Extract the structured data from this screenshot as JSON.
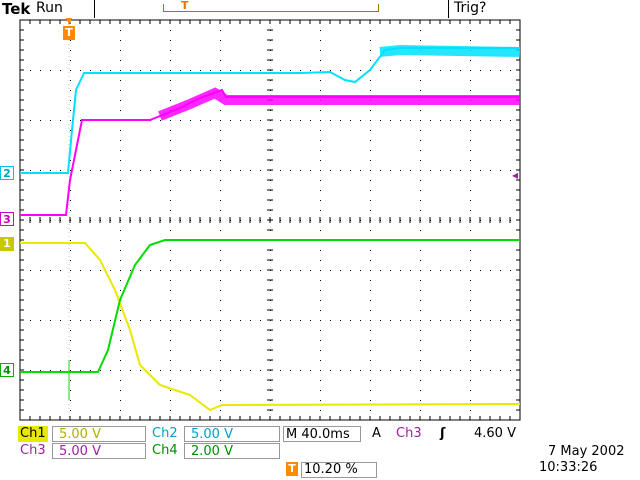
{
  "header": {
    "brand": "Tek",
    "status": "Run",
    "trigger_state": "Trig?"
  },
  "markers": {
    "trigger_position": "T",
    "ch2": "2",
    "ch3": "3",
    "ch1": "1",
    "ch4": "4",
    "trigger_level_arrow": "◂"
  },
  "readouts": {
    "ch1_label": "Ch1",
    "ch1_value": "5.00 V",
    "ch2_label": "Ch2",
    "ch2_value": "5.00 V",
    "ch3_label": "Ch3",
    "ch3_value": "5.00 V",
    "ch4_label": "Ch4",
    "ch4_value": "2.00 V",
    "timebase": "M 40.0ms",
    "trigger_mode": "A",
    "trigger_source": "Ch3",
    "trigger_slope": "ʃ",
    "trigger_value": "4.60 V",
    "trigger_position_icon": "T",
    "trigger_position_pct": "10.20 %"
  },
  "datetime": {
    "date": "7 May 2002",
    "time": "10:33:26"
  },
  "colors": {
    "ch1": "#e8e800",
    "ch2": "#00e0ff",
    "ch3": "#ff00ff",
    "ch4": "#00dd00",
    "trigger": "#ff8a00",
    "grid": "#000000"
  }
}
